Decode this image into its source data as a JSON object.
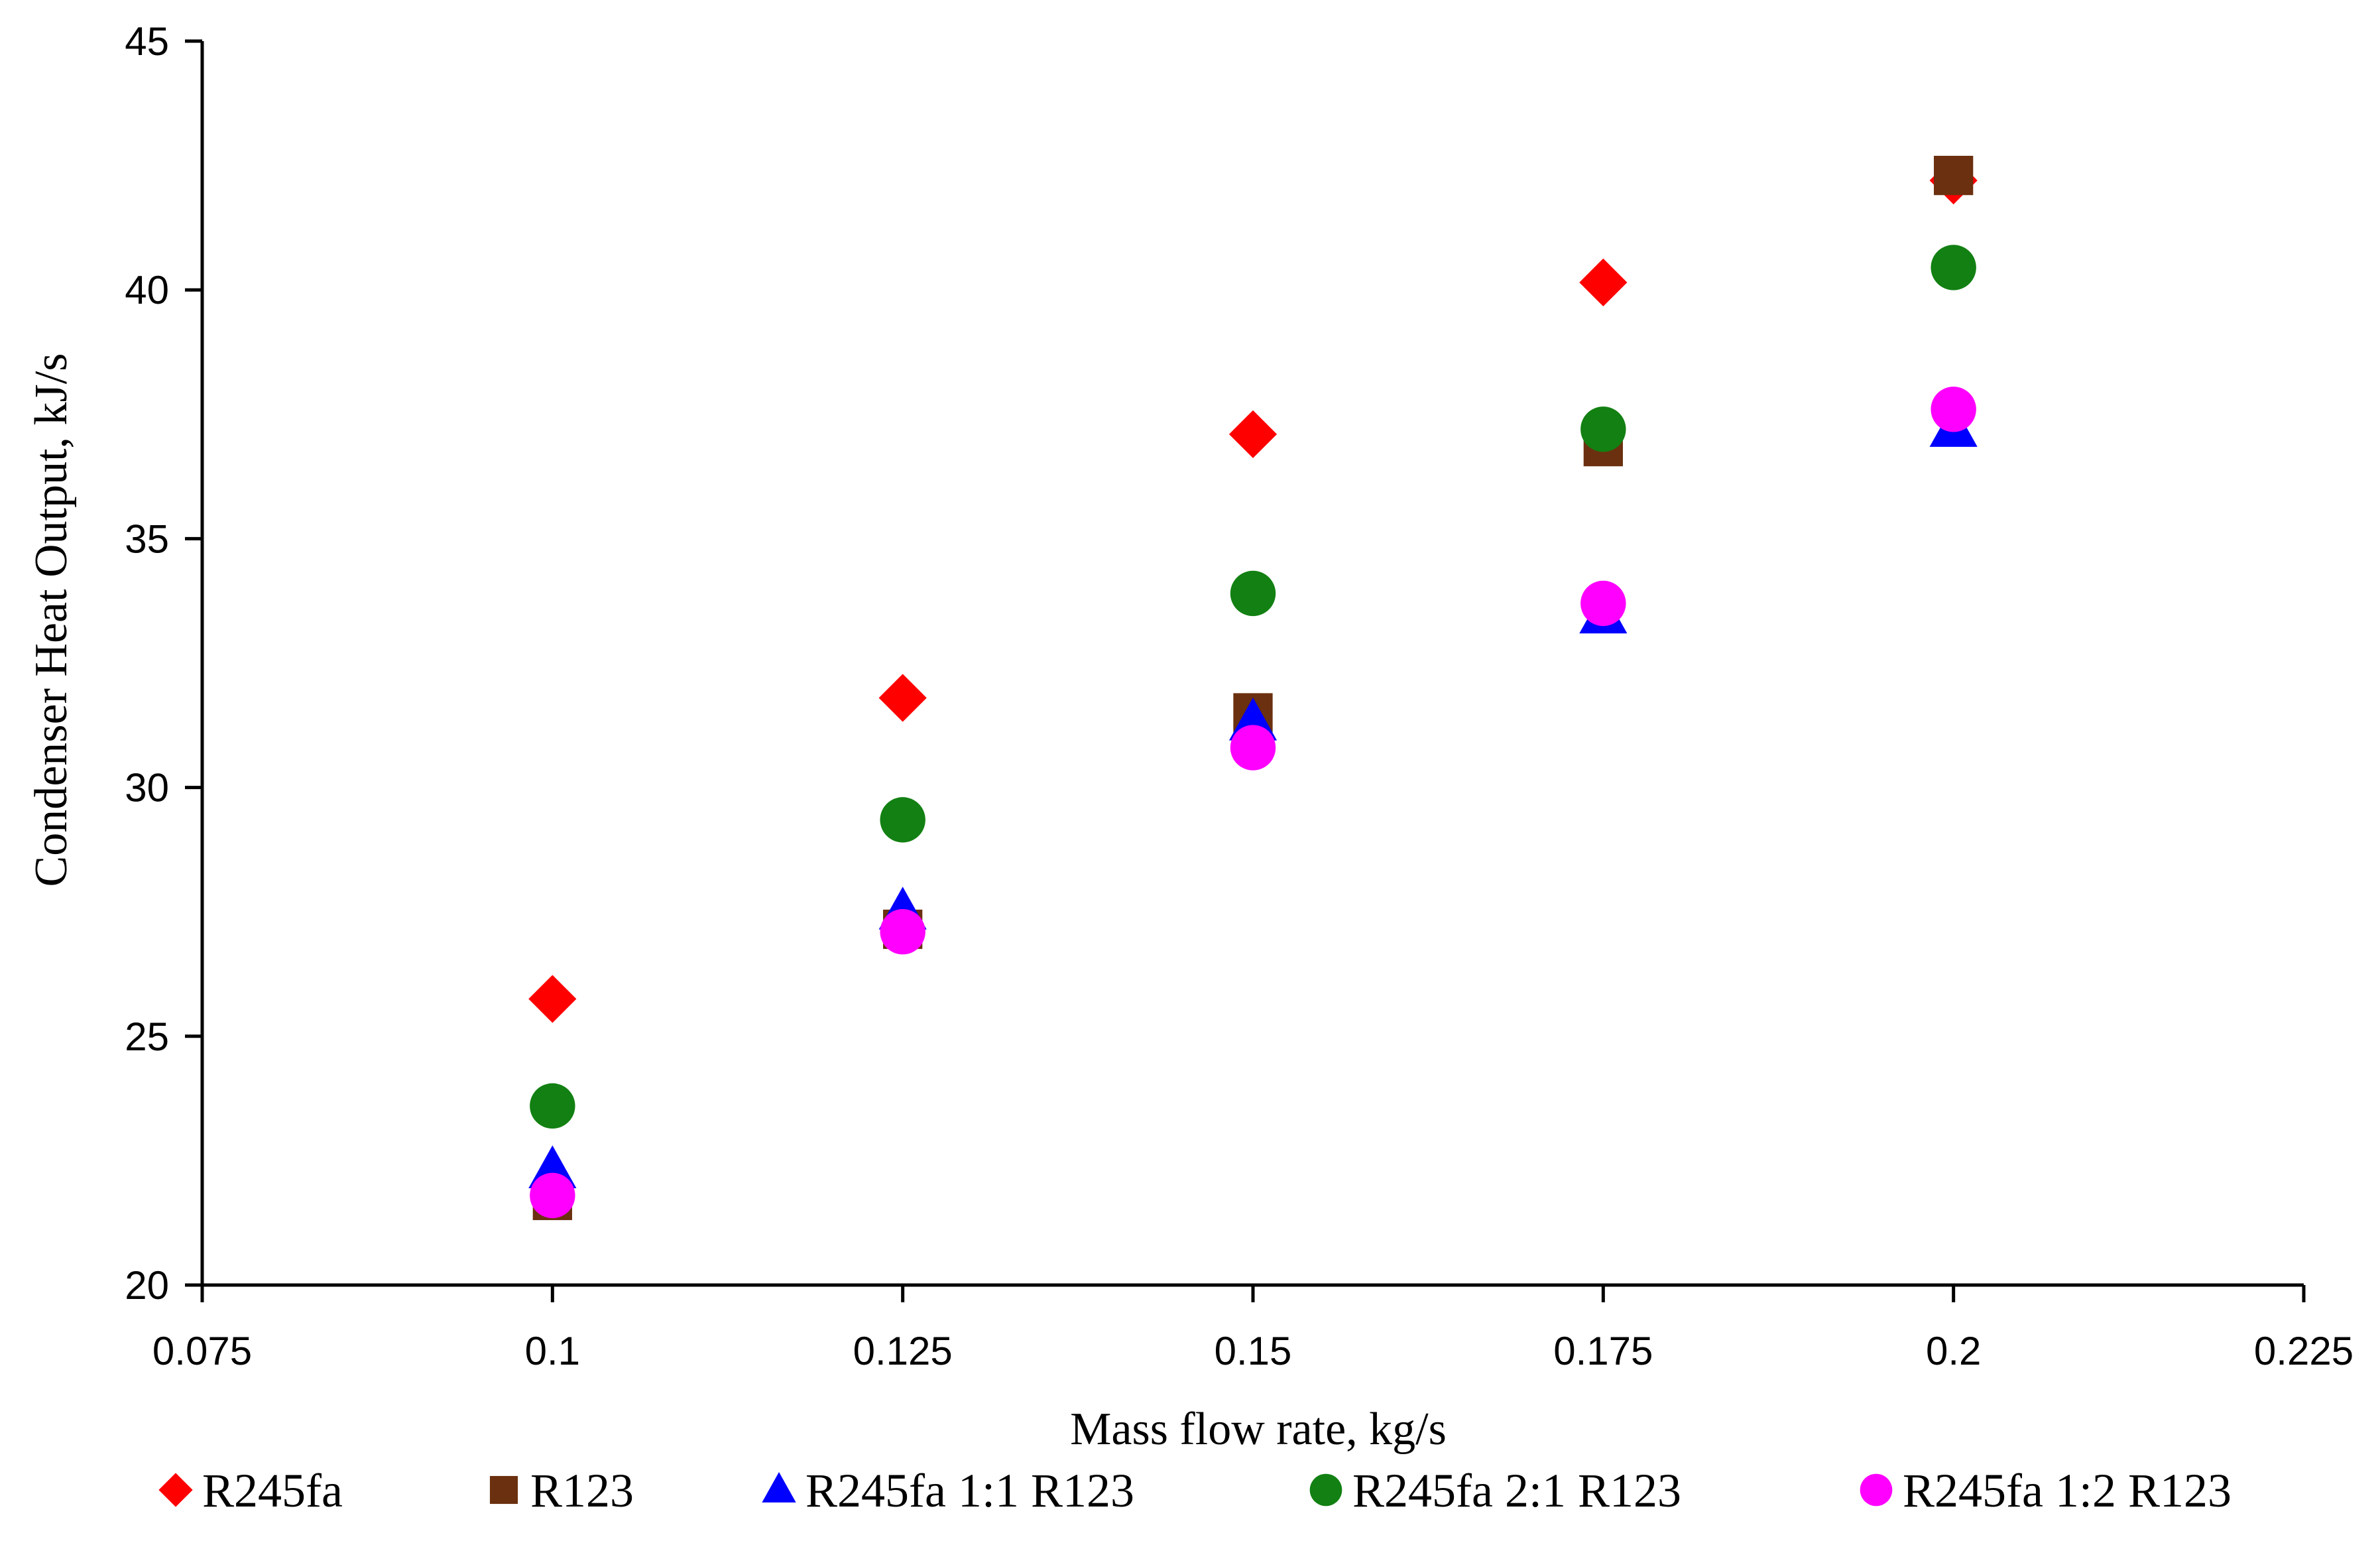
{
  "chart_data": {
    "type": "scatter",
    "title": "",
    "xlabel": "Mass flow rate, kg/s",
    "ylabel": "Condenser Heat Output, kJ/s",
    "xlim": [
      0.075,
      0.225
    ],
    "ylim": [
      20,
      45
    ],
    "xticks": [
      0.075,
      0.1,
      0.125,
      0.15,
      0.175,
      0.2,
      0.225
    ],
    "xtick_labels": [
      "0.075",
      "0.1",
      "0.125",
      "0.15",
      "0.175",
      "0.2",
      "0.225"
    ],
    "yticks": [
      20,
      25,
      30,
      35,
      40,
      45
    ],
    "ytick_labels": [
      "20",
      "25",
      "30",
      "35",
      "40",
      "45"
    ],
    "grid": false,
    "legend_position": "bottom",
    "x": [
      0.1,
      0.125,
      0.15,
      0.175,
      0.2
    ],
    "series": [
      {
        "name": "R245fa",
        "marker": "diamond",
        "color": "#ff0000",
        "values": [
          25.75,
          31.8,
          37.1,
          40.15,
          42.2
        ]
      },
      {
        "name": "R123",
        "marker": "square",
        "color": "#6b300f",
        "values": [
          21.7,
          27.15,
          31.5,
          36.85,
          42.3
        ]
      },
      {
        "name": "R245fa 1:1 R123",
        "marker": "triangle",
        "color": "#0000ff",
        "values": [
          22.3,
          27.5,
          31.3,
          33.45,
          37.2
        ]
      },
      {
        "name": "R245fa 2:1 R123",
        "marker": "circle",
        "color": "#128012",
        "values": [
          23.6,
          29.35,
          33.9,
          37.2,
          40.45
        ]
      },
      {
        "name": "R245fa 1:2 R123",
        "marker": "circle",
        "color": "#ff00ff",
        "values": [
          21.8,
          27.1,
          30.8,
          33.7,
          37.6
        ]
      }
    ]
  }
}
